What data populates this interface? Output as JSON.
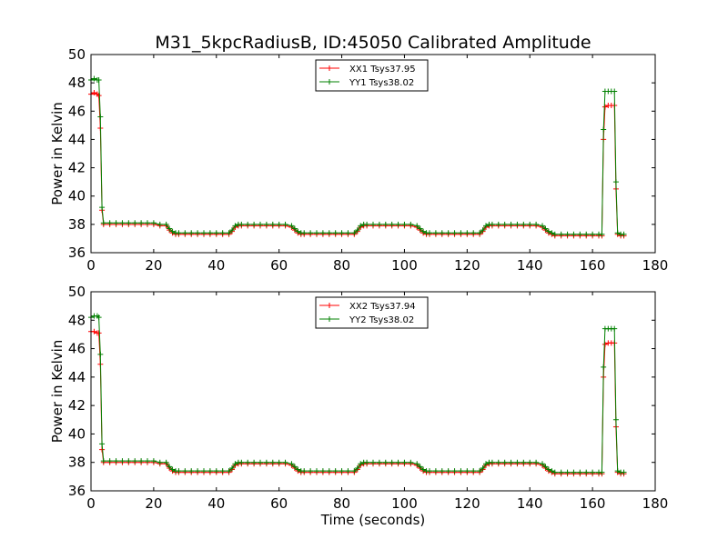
{
  "figure": {
    "title": "M31_5kpcRadiusB, ID:45050 Calibrated Amplitude",
    "xlabel": "Time (seconds)"
  },
  "colors": {
    "xx": "#ff0000",
    "yy": "#008000",
    "axes": "#000000",
    "background": "#ffffff"
  },
  "chart_data": [
    {
      "type": "line",
      "title": "M31_5kpcRadiusB, ID:45050 Calibrated Amplitude",
      "xlabel": "",
      "ylabel": "Power in Kelvin",
      "xlim": [
        0,
        180
      ],
      "ylim": [
        36,
        50
      ],
      "xticks": [
        0,
        20,
        40,
        60,
        80,
        100,
        120,
        140,
        160,
        180
      ],
      "yticks": [
        36,
        38,
        40,
        42,
        44,
        46,
        48,
        50
      ],
      "grid": false,
      "legend_position": "top-center",
      "series": [
        {
          "name": "XX1 Tsys37.95",
          "color": "#ff0000",
          "x": [
            0,
            1,
            2,
            2.5,
            3,
            3.5,
            4,
            6,
            8,
            10,
            12,
            14,
            16,
            18,
            20,
            22,
            24,
            25,
            26,
            27,
            28,
            30,
            32,
            34,
            36,
            38,
            40,
            42,
            44,
            45,
            46,
            47,
            48,
            50,
            52,
            54,
            56,
            58,
            60,
            62,
            64,
            65,
            66,
            67,
            68,
            70,
            72,
            74,
            76,
            78,
            80,
            82,
            84,
            85,
            86,
            87,
            88,
            90,
            92,
            94,
            96,
            98,
            100,
            102,
            104,
            105,
            106,
            107,
            108,
            110,
            112,
            114,
            116,
            118,
            120,
            122,
            124,
            125,
            126,
            127,
            128,
            130,
            132,
            134,
            136,
            138,
            140,
            142,
            144,
            145,
            146,
            147,
            148,
            150,
            152,
            154,
            156,
            158,
            160,
            162,
            163,
            163.5,
            164,
            165,
            166,
            167,
            167.5,
            168,
            169,
            170
          ],
          "y": [
            47.2,
            47.3,
            47.2,
            47.1,
            44.8,
            39,
            38.0,
            38.0,
            38.0,
            38.0,
            38.0,
            38.0,
            38.0,
            38.0,
            38.0,
            37.9,
            37.9,
            37.6,
            37.4,
            37.3,
            37.3,
            37.3,
            37.3,
            37.3,
            37.3,
            37.3,
            37.3,
            37.3,
            37.3,
            37.5,
            37.8,
            37.9,
            37.9,
            37.9,
            37.9,
            37.9,
            37.9,
            37.9,
            37.9,
            37.9,
            37.8,
            37.6,
            37.4,
            37.3,
            37.3,
            37.3,
            37.3,
            37.3,
            37.3,
            37.3,
            37.3,
            37.3,
            37.3,
            37.5,
            37.8,
            37.9,
            37.9,
            37.9,
            37.9,
            37.9,
            37.9,
            37.9,
            37.9,
            37.9,
            37.8,
            37.6,
            37.4,
            37.3,
            37.3,
            37.3,
            37.3,
            37.3,
            37.3,
            37.3,
            37.3,
            37.3,
            37.3,
            37.5,
            37.8,
            37.9,
            37.9,
            37.9,
            37.9,
            37.9,
            37.9,
            37.9,
            37.9,
            37.9,
            37.8,
            37.6,
            37.4,
            37.3,
            37.2,
            37.2,
            37.2,
            37.2,
            37.2,
            37.2,
            37.2,
            37.2,
            37.2,
            44.0,
            46.3,
            46.4,
            46.4,
            46.4,
            40.5,
            37.3,
            37.2,
            37.2
          ]
        },
        {
          "name": "YY1 Tsys38.02",
          "color": "#008000",
          "x": [
            0,
            1,
            2,
            2.5,
            3,
            3.5,
            4,
            6,
            8,
            10,
            12,
            14,
            16,
            18,
            20,
            22,
            24,
            25,
            26,
            27,
            28,
            30,
            32,
            34,
            36,
            38,
            40,
            42,
            44,
            45,
            46,
            47,
            48,
            50,
            52,
            54,
            56,
            58,
            60,
            62,
            64,
            65,
            66,
            67,
            68,
            70,
            72,
            74,
            76,
            78,
            80,
            82,
            84,
            85,
            86,
            87,
            88,
            90,
            92,
            94,
            96,
            98,
            100,
            102,
            104,
            105,
            106,
            107,
            108,
            110,
            112,
            114,
            116,
            118,
            120,
            122,
            124,
            125,
            126,
            127,
            128,
            130,
            132,
            134,
            136,
            138,
            140,
            142,
            144,
            145,
            146,
            147,
            148,
            150,
            152,
            154,
            156,
            158,
            160,
            162,
            163,
            163.5,
            164,
            165,
            166,
            167,
            167.5,
            168,
            169,
            170
          ],
          "y": [
            48.2,
            48.3,
            48.2,
            48.2,
            45.6,
            39.2,
            38.1,
            38.1,
            38.1,
            38.1,
            38.1,
            38.1,
            38.1,
            38.1,
            38.1,
            38.0,
            38.0,
            37.7,
            37.5,
            37.4,
            37.4,
            37.4,
            37.4,
            37.4,
            37.4,
            37.4,
            37.4,
            37.4,
            37.4,
            37.6,
            37.9,
            38.0,
            38.0,
            38.0,
            38.0,
            38.0,
            38.0,
            38.0,
            38.0,
            38.0,
            37.9,
            37.7,
            37.5,
            37.4,
            37.4,
            37.4,
            37.4,
            37.4,
            37.4,
            37.4,
            37.4,
            37.4,
            37.4,
            37.6,
            37.9,
            38.0,
            38.0,
            38.0,
            38.0,
            38.0,
            38.0,
            38.0,
            38.0,
            38.0,
            37.9,
            37.7,
            37.5,
            37.4,
            37.4,
            37.4,
            37.4,
            37.4,
            37.4,
            37.4,
            37.4,
            37.4,
            37.4,
            37.6,
            37.9,
            38.0,
            38.0,
            38.0,
            38.0,
            38.0,
            38.0,
            38.0,
            38.0,
            38.0,
            37.9,
            37.7,
            37.5,
            37.4,
            37.3,
            37.3,
            37.3,
            37.3,
            37.3,
            37.3,
            37.3,
            37.3,
            37.3,
            44.7,
            47.4,
            47.4,
            47.4,
            47.4,
            41.0,
            37.4,
            37.3,
            37.3
          ]
        }
      ]
    },
    {
      "type": "line",
      "title": "",
      "xlabel": "Time (seconds)",
      "ylabel": "Power in Kelvin",
      "xlim": [
        0,
        180
      ],
      "ylim": [
        36,
        50
      ],
      "xticks": [
        0,
        20,
        40,
        60,
        80,
        100,
        120,
        140,
        160,
        180
      ],
      "yticks": [
        36,
        38,
        40,
        42,
        44,
        46,
        48,
        50
      ],
      "grid": false,
      "legend_position": "top-center",
      "series": [
        {
          "name": "XX2 Tsys37.94",
          "color": "#ff0000",
          "x": [
            0,
            1,
            2,
            2.5,
            3,
            3.5,
            4,
            6,
            8,
            10,
            12,
            14,
            16,
            18,
            20,
            22,
            24,
            25,
            26,
            27,
            28,
            30,
            32,
            34,
            36,
            38,
            40,
            42,
            44,
            45,
            46,
            47,
            48,
            50,
            52,
            54,
            56,
            58,
            60,
            62,
            64,
            65,
            66,
            67,
            68,
            70,
            72,
            74,
            76,
            78,
            80,
            82,
            84,
            85,
            86,
            87,
            88,
            90,
            92,
            94,
            96,
            98,
            100,
            102,
            104,
            105,
            106,
            107,
            108,
            110,
            112,
            114,
            116,
            118,
            120,
            122,
            124,
            125,
            126,
            127,
            128,
            130,
            132,
            134,
            136,
            138,
            140,
            142,
            144,
            145,
            146,
            147,
            148,
            150,
            152,
            154,
            156,
            158,
            160,
            162,
            163,
            163.5,
            164,
            165,
            166,
            167,
            167.5,
            168,
            169,
            170
          ],
          "y": [
            47.2,
            47.2,
            47.1,
            47.1,
            44.9,
            38.9,
            38.0,
            38.0,
            38.0,
            38.0,
            38.0,
            38.0,
            38.0,
            38.0,
            38.0,
            37.9,
            37.9,
            37.6,
            37.4,
            37.3,
            37.3,
            37.3,
            37.3,
            37.3,
            37.3,
            37.3,
            37.3,
            37.3,
            37.3,
            37.5,
            37.8,
            37.9,
            37.9,
            37.9,
            37.9,
            37.9,
            37.9,
            37.9,
            37.9,
            37.9,
            37.8,
            37.6,
            37.4,
            37.3,
            37.3,
            37.3,
            37.3,
            37.3,
            37.3,
            37.3,
            37.3,
            37.3,
            37.3,
            37.5,
            37.8,
            37.9,
            37.9,
            37.9,
            37.9,
            37.9,
            37.9,
            37.9,
            37.9,
            37.9,
            37.8,
            37.6,
            37.4,
            37.3,
            37.3,
            37.3,
            37.3,
            37.3,
            37.3,
            37.3,
            37.3,
            37.3,
            37.3,
            37.5,
            37.8,
            37.9,
            37.9,
            37.9,
            37.9,
            37.9,
            37.9,
            37.9,
            37.9,
            37.9,
            37.8,
            37.6,
            37.4,
            37.3,
            37.2,
            37.2,
            37.2,
            37.2,
            37.2,
            37.2,
            37.2,
            37.2,
            37.2,
            44.0,
            46.3,
            46.4,
            46.4,
            46.4,
            40.5,
            37.3,
            37.2,
            37.2
          ]
        },
        {
          "name": "YY2 Tsys38.02",
          "color": "#008000",
          "x": [
            0,
            1,
            2,
            2.5,
            3,
            3.5,
            4,
            6,
            8,
            10,
            12,
            14,
            16,
            18,
            20,
            22,
            24,
            25,
            26,
            27,
            28,
            30,
            32,
            34,
            36,
            38,
            40,
            42,
            44,
            45,
            46,
            47,
            48,
            50,
            52,
            54,
            56,
            58,
            60,
            62,
            64,
            65,
            66,
            67,
            68,
            70,
            72,
            74,
            76,
            78,
            80,
            82,
            84,
            85,
            86,
            87,
            88,
            90,
            92,
            94,
            96,
            98,
            100,
            102,
            104,
            105,
            106,
            107,
            108,
            110,
            112,
            114,
            116,
            118,
            120,
            122,
            124,
            125,
            126,
            127,
            128,
            130,
            132,
            134,
            136,
            138,
            140,
            142,
            144,
            145,
            146,
            147,
            148,
            150,
            152,
            154,
            156,
            158,
            160,
            162,
            163,
            163.5,
            164,
            165,
            166,
            167,
            167.5,
            168,
            169,
            170
          ],
          "y": [
            48.2,
            48.3,
            48.3,
            48.2,
            45.6,
            39.3,
            38.1,
            38.1,
            38.1,
            38.1,
            38.1,
            38.1,
            38.1,
            38.1,
            38.1,
            38.0,
            38.0,
            37.7,
            37.5,
            37.4,
            37.4,
            37.4,
            37.4,
            37.4,
            37.4,
            37.4,
            37.4,
            37.4,
            37.4,
            37.6,
            37.9,
            38.0,
            38.0,
            38.0,
            38.0,
            38.0,
            38.0,
            38.0,
            38.0,
            38.0,
            37.9,
            37.7,
            37.5,
            37.4,
            37.4,
            37.4,
            37.4,
            37.4,
            37.4,
            37.4,
            37.4,
            37.4,
            37.4,
            37.6,
            37.9,
            38.0,
            38.0,
            38.0,
            38.0,
            38.0,
            38.0,
            38.0,
            38.0,
            38.0,
            37.9,
            37.7,
            37.5,
            37.4,
            37.4,
            37.4,
            37.4,
            37.4,
            37.4,
            37.4,
            37.4,
            37.4,
            37.4,
            37.6,
            37.9,
            38.0,
            38.0,
            38.0,
            38.0,
            38.0,
            38.0,
            38.0,
            38.0,
            38.0,
            37.9,
            37.7,
            37.5,
            37.4,
            37.3,
            37.3,
            37.3,
            37.3,
            37.3,
            37.3,
            37.3,
            37.3,
            37.3,
            44.7,
            47.4,
            47.4,
            47.4,
            47.4,
            41.0,
            37.4,
            37.3,
            37.3
          ]
        }
      ]
    }
  ]
}
